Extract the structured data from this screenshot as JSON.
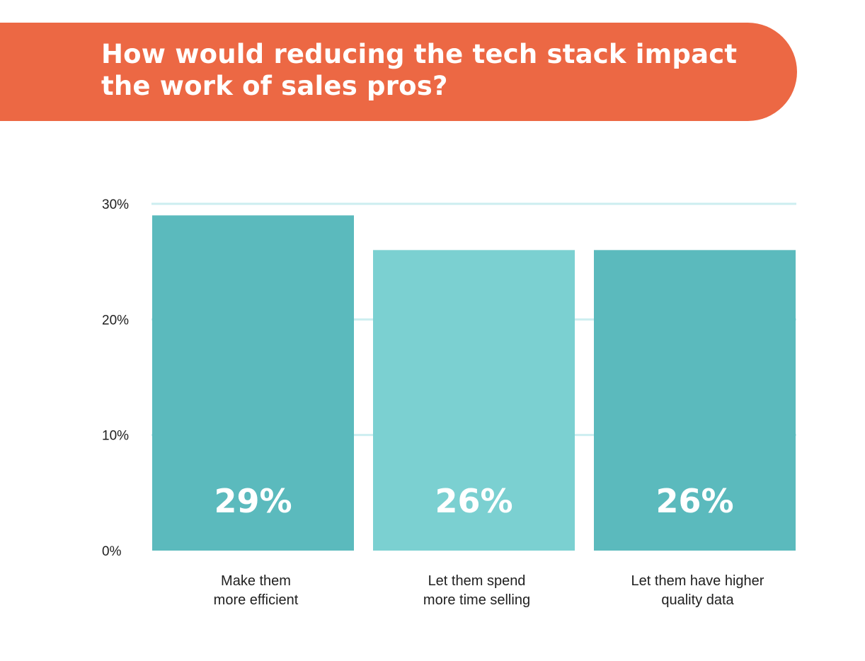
{
  "header": {
    "title_line1": "How would reducing the tech stack impact",
    "title_line2": "the work of sales pros?",
    "color": "#ec6844"
  },
  "chart_data": {
    "type": "bar",
    "title": "How would reducing the tech stack impact the work of sales pros?",
    "categories": [
      [
        "Make them",
        "more efficient"
      ],
      [
        "Let them spend",
        "more time selling"
      ],
      [
        "Let them have higher",
        "quality data"
      ]
    ],
    "values": [
      29,
      26,
      26
    ],
    "value_labels": [
      "29%",
      "26%",
      "26%"
    ],
    "bar_colors": [
      "#5bbabd",
      "#7bd0d1",
      "#5bbabd"
    ],
    "ylim": [
      0,
      30
    ],
    "yticks": [
      0,
      10,
      20,
      30
    ],
    "ytick_labels": [
      "0%",
      "10%",
      "20%",
      "30%"
    ],
    "xlabel": "",
    "ylabel": "",
    "grid": true,
    "grid_color": "#cdeef0"
  }
}
